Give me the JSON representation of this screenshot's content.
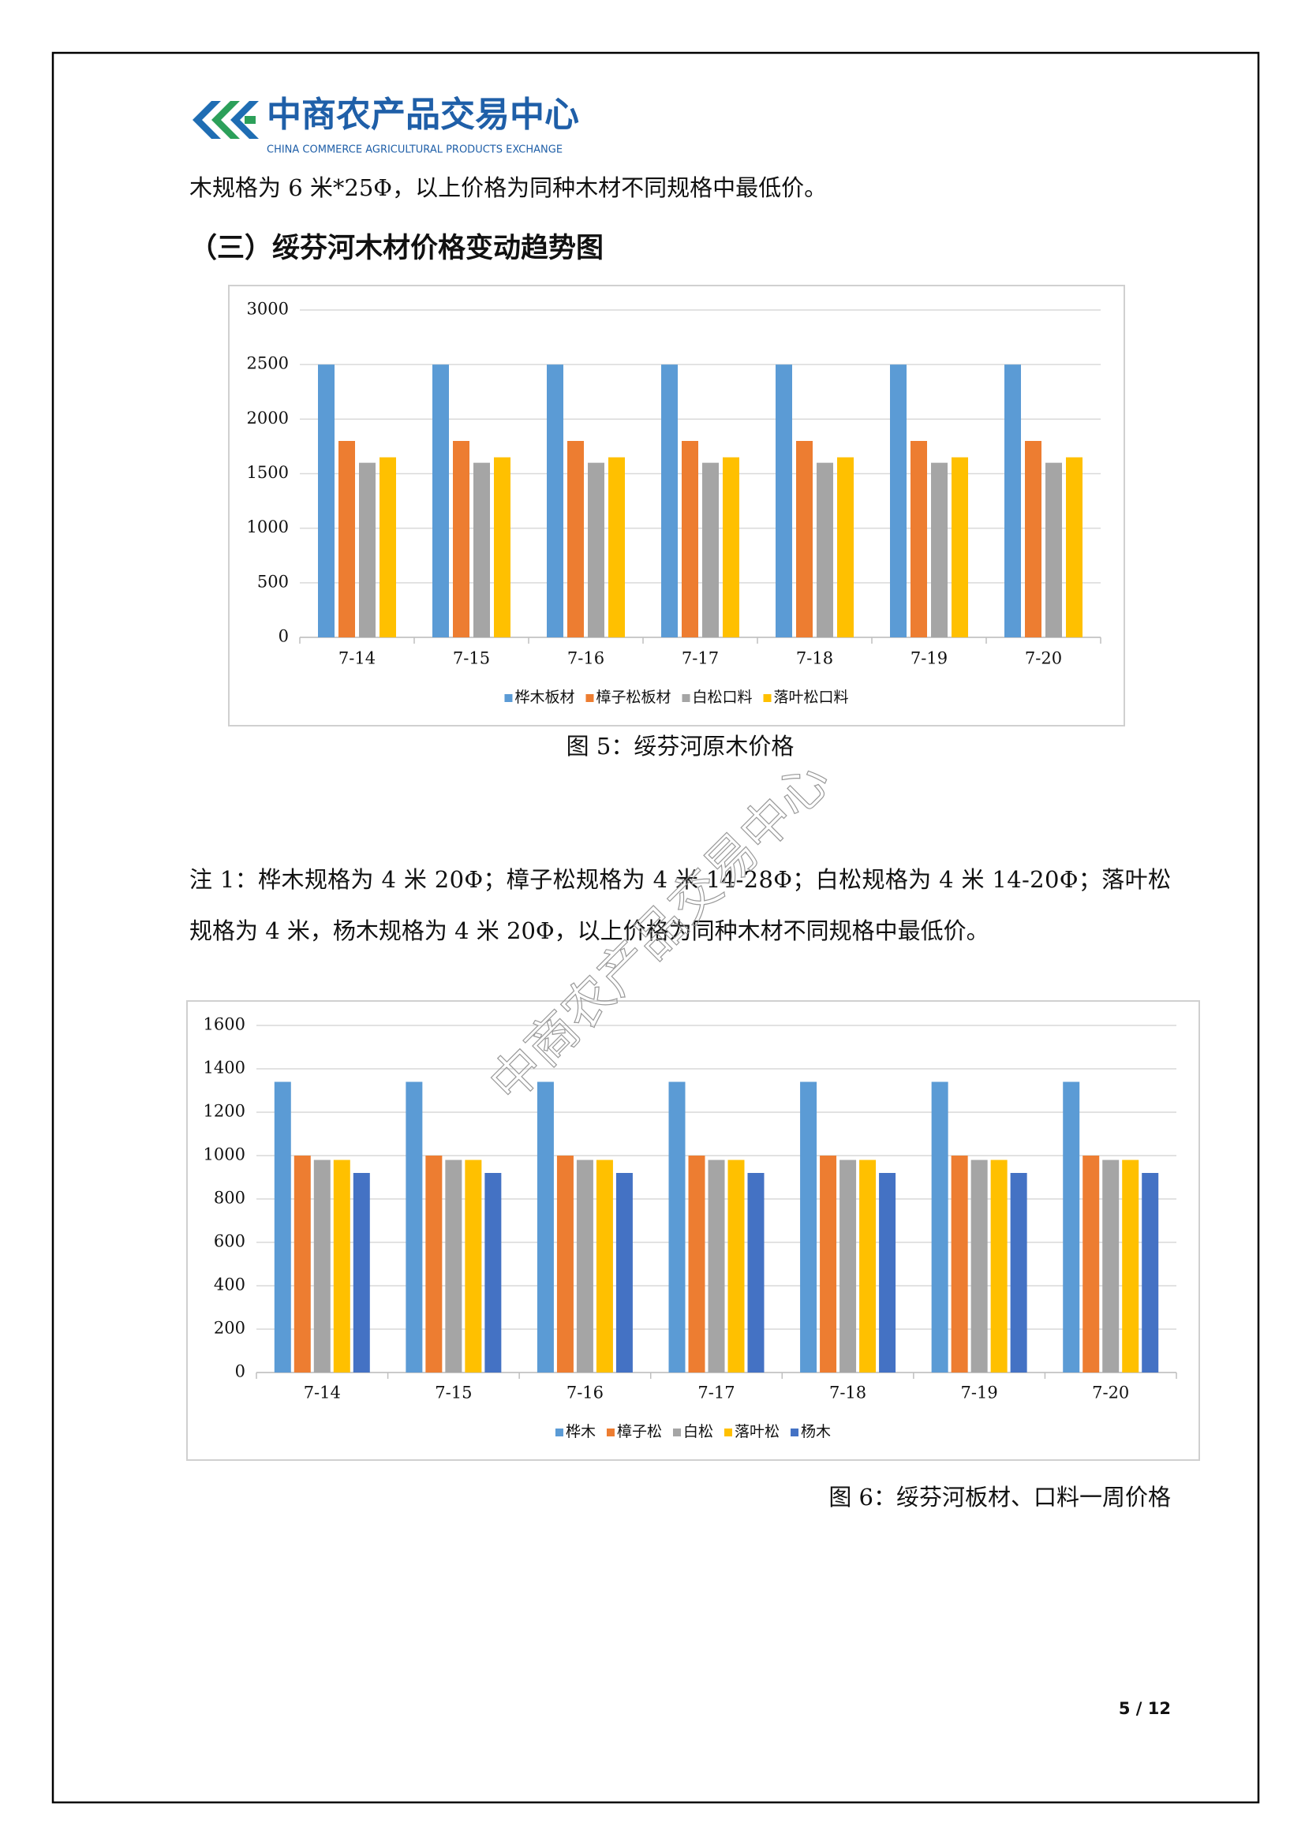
{
  "header": {
    "logo_title": "中商农产品交易中心",
    "logo_subtitle": "CHINA COMMERCE AGRICULTURAL PRODUCTS EXCHANGE"
  },
  "paragraphs": [
    "木规格为 6 米*25Φ，以上价格为同种木材不同规格中最低价。"
  ],
  "section_heading": "（三）绥芬河木材价格变动趋势图",
  "note_lines": [
    "注 1：桦木规格为 4 米 20Φ；樟子松规格为 4 米 14-28Φ；白松规格为 4 米 14-20Φ；落叶松",
    "规格为 4 米，杨木规格为 4 米 20Φ，以上价格为同种木材不同规格中最低价。"
  ],
  "chart_data": [
    {
      "type": "bar",
      "caption": "图 5：绥芬河原木价格",
      "categories": [
        "7-14",
        "7-15",
        "7-16",
        "7-17",
        "7-18",
        "7-19",
        "7-20"
      ],
      "series": [
        {
          "name": "桦木板材",
          "color": "#5b9bd5",
          "values": [
            2500,
            2500,
            2500,
            2500,
            2500,
            2500,
            2500
          ]
        },
        {
          "name": "樟子松板材",
          "color": "#ed7d31",
          "values": [
            1800,
            1800,
            1800,
            1800,
            1800,
            1800,
            1800
          ]
        },
        {
          "name": "白松口料",
          "color": "#a5a5a5",
          "values": [
            1600,
            1600,
            1600,
            1600,
            1600,
            1600,
            1600
          ]
        },
        {
          "name": "落叶松口料",
          "color": "#ffc000",
          "values": [
            1650,
            1650,
            1650,
            1650,
            1650,
            1650,
            1650
          ]
        }
      ],
      "ylim": [
        0,
        3000
      ],
      "yticks": [
        0,
        500,
        1000,
        1500,
        2000,
        2500,
        3000
      ],
      "grid": true,
      "legend": "bottom"
    },
    {
      "type": "bar",
      "caption": "图 6：绥芬河板材、口料一周价格",
      "categories": [
        "7-14",
        "7-15",
        "7-16",
        "7-17",
        "7-18",
        "7-19",
        "7-20"
      ],
      "series": [
        {
          "name": "桦木",
          "color": "#5b9bd5",
          "values": [
            1340,
            1340,
            1340,
            1340,
            1340,
            1340,
            1340
          ]
        },
        {
          "name": "樟子松",
          "color": "#ed7d31",
          "values": [
            1000,
            1000,
            1000,
            1000,
            1000,
            1000,
            1000
          ]
        },
        {
          "name": "白松",
          "color": "#a5a5a5",
          "values": [
            980,
            980,
            980,
            980,
            980,
            980,
            980
          ]
        },
        {
          "name": "落叶松",
          "color": "#ffc000",
          "values": [
            980,
            980,
            980,
            980,
            980,
            980,
            980
          ]
        },
        {
          "name": "杨木",
          "color": "#4472c4",
          "values": [
            920,
            920,
            920,
            920,
            920,
            920,
            920
          ]
        }
      ],
      "ylim": [
        0,
        1600
      ],
      "yticks": [
        0,
        200,
        400,
        600,
        800,
        1000,
        1200,
        1400,
        1600
      ],
      "grid": true,
      "legend": "bottom"
    }
  ],
  "watermark": "中商农产品交易中心",
  "page_number": "5 / 12"
}
